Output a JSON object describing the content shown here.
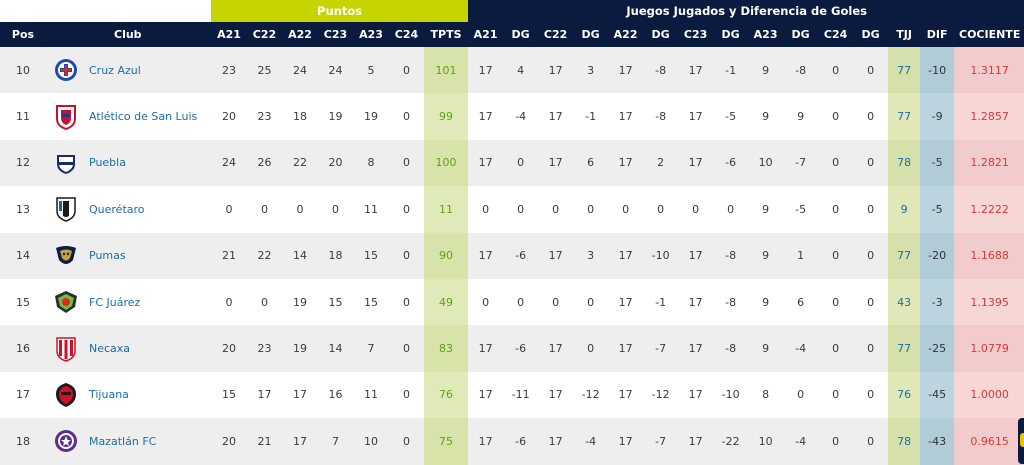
{
  "groups": {
    "puntos": "Puntos",
    "juegos": "Juegos Jugados y Diferencia de Goles"
  },
  "headers": {
    "pos": "Pos",
    "club": "Club",
    "cols": [
      "A21",
      "C22",
      "A22",
      "C23",
      "A23",
      "C24",
      "TPTS",
      "A21",
      "DG",
      "C22",
      "DG",
      "A22",
      "DG",
      "C23",
      "DG",
      "A23",
      "DG",
      "C24",
      "DG",
      "TJJ",
      "DIF",
      "COCIENTE"
    ]
  },
  "rows": [
    {
      "pos": "10",
      "club": "Cruz Azul",
      "logo": "cruz-azul-logo",
      "cells": [
        "23",
        "25",
        "24",
        "24",
        "5",
        "0",
        "101",
        "17",
        "4",
        "17",
        "3",
        "17",
        "-8",
        "17",
        "-1",
        "9",
        "-8",
        "0",
        "0",
        "77",
        "-10",
        "1.3117"
      ]
    },
    {
      "pos": "11",
      "club": "Atlético de San Luis",
      "logo": "atletico-san-luis-logo",
      "cells": [
        "20",
        "23",
        "18",
        "19",
        "19",
        "0",
        "99",
        "17",
        "-4",
        "17",
        "-1",
        "17",
        "-8",
        "17",
        "-5",
        "9",
        "9",
        "0",
        "0",
        "77",
        "-9",
        "1.2857"
      ]
    },
    {
      "pos": "12",
      "club": "Puebla",
      "logo": "puebla-logo",
      "cells": [
        "24",
        "26",
        "22",
        "20",
        "8",
        "0",
        "100",
        "17",
        "0",
        "17",
        "6",
        "17",
        "2",
        "17",
        "-6",
        "10",
        "-7",
        "0",
        "0",
        "78",
        "-5",
        "1.2821"
      ]
    },
    {
      "pos": "13",
      "club": "Querétaro",
      "logo": "queretaro-logo",
      "cells": [
        "0",
        "0",
        "0",
        "0",
        "11",
        "0",
        "11",
        "0",
        "0",
        "0",
        "0",
        "0",
        "0",
        "0",
        "0",
        "9",
        "-5",
        "0",
        "0",
        "9",
        "-5",
        "1.2222"
      ]
    },
    {
      "pos": "14",
      "club": "Pumas",
      "logo": "pumas-logo",
      "cells": [
        "21",
        "22",
        "14",
        "18",
        "15",
        "0",
        "90",
        "17",
        "-6",
        "17",
        "3",
        "17",
        "-10",
        "17",
        "-8",
        "9",
        "1",
        "0",
        "0",
        "77",
        "-20",
        "1.1688"
      ]
    },
    {
      "pos": "15",
      "club": "FC Juárez",
      "logo": "fc-juarez-logo",
      "cells": [
        "0",
        "0",
        "19",
        "15",
        "15",
        "0",
        "49",
        "0",
        "0",
        "0",
        "0",
        "17",
        "-1",
        "17",
        "-8",
        "9",
        "6",
        "0",
        "0",
        "43",
        "-3",
        "1.1395"
      ]
    },
    {
      "pos": "16",
      "club": "Necaxa",
      "logo": "necaxa-logo",
      "cells": [
        "20",
        "23",
        "19",
        "14",
        "7",
        "0",
        "83",
        "17",
        "-6",
        "17",
        "0",
        "17",
        "-7",
        "17",
        "-8",
        "9",
        "-4",
        "0",
        "0",
        "77",
        "-25",
        "1.0779"
      ]
    },
    {
      "pos": "17",
      "club": "Tijuana",
      "logo": "tijuana-logo",
      "cells": [
        "15",
        "17",
        "17",
        "16",
        "11",
        "0",
        "76",
        "17",
        "-11",
        "17",
        "-12",
        "17",
        "-12",
        "17",
        "-10",
        "8",
        "0",
        "0",
        "0",
        "76",
        "-45",
        "1.0000"
      ]
    },
    {
      "pos": "18",
      "club": "Mazatlán FC",
      "logo": "mazatlan-logo",
      "cells": [
        "20",
        "21",
        "17",
        "7",
        "10",
        "0",
        "75",
        "17",
        "-6",
        "17",
        "-4",
        "17",
        "-7",
        "17",
        "-22",
        "10",
        "-4",
        "0",
        "0",
        "78",
        "-43",
        "0.9615"
      ]
    }
  ],
  "colors": {
    "header_bg": "#0b1b3f",
    "puntos_bg": "#c6d500",
    "tpts_text": "#5fa313",
    "tjj_text": "#1b6ea8",
    "cociente_text": "#d63a3a"
  }
}
